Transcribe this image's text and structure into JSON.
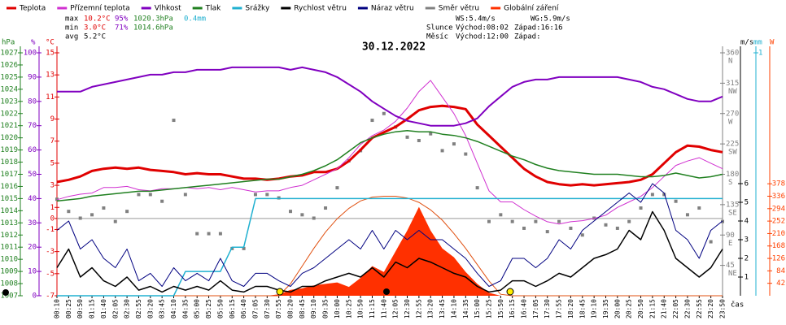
{
  "stats": {
    "max": {
      "label": "max",
      "temp": "10.2°C",
      "humidity": "95%",
      "pressure": "1020.3hPa",
      "rain": "0.4mm"
    },
    "min": {
      "label": "min",
      "temp": "3.0°C",
      "humidity": "71%",
      "pressure": "1014.6hPa"
    },
    "avg": {
      "label": "avg",
      "temp": "5.2°C"
    },
    "ws": "WS:5.4m/s",
    "wg": "WG:5.9m/s",
    "sun": {
      "label": "Slunce",
      "rise": "Východ:08:02",
      "set": "Západ:16:16"
    },
    "moon": {
      "label": "Měsíc",
      "rise": "Východ:12:00",
      "set": "Západ:"
    }
  },
  "chart_data": {
    "type": "line",
    "title": "30.12.2022",
    "x_label": "čas",
    "zero_line": true,
    "categories": [
      "00:10",
      "00:25",
      "00:50",
      "01:15",
      "01:40",
      "02:05",
      "02:30",
      "02:55",
      "03:20",
      "03:45",
      "04:10",
      "04:35",
      "05:00",
      "05:25",
      "05:50",
      "06:15",
      "06:40",
      "07:05",
      "07:30",
      "07:55",
      "08:20",
      "08:45",
      "09:10",
      "09:35",
      "10:00",
      "10:25",
      "10:50",
      "11:15",
      "11:40",
      "12:05",
      "12:30",
      "12:55",
      "13:20",
      "13:45",
      "14:10",
      "14:35",
      "15:00",
      "15:25",
      "15:50",
      "16:15",
      "16:40",
      "17:05",
      "17:30",
      "17:55",
      "18:20",
      "18:45",
      "19:10",
      "19:35",
      "20:00",
      "20:25",
      "20:50",
      "21:15",
      "21:40",
      "22:05",
      "22:30",
      "22:55",
      "23:20",
      "23:50"
    ],
    "axes": {
      "pressure": {
        "label": "hPa",
        "color": "#208020",
        "ylim": [
          1007,
          1027
        ],
        "yticks": [
          1027,
          1026,
          1025,
          1024,
          1023,
          1022,
          1021,
          1020,
          1019,
          1018,
          1017,
          1016,
          1015,
          1014,
          1013,
          1012,
          1011,
          1010,
          1009,
          1008,
          1007
        ]
      },
      "humidity": {
        "label": "%",
        "color": "#8000c0",
        "ylim": [
          0,
          100
        ],
        "yticks": [
          100,
          90,
          80,
          70,
          60,
          50,
          40,
          30,
          20,
          10,
          0
        ]
      },
      "temp": {
        "label": "°C",
        "color": "#e00000",
        "ylim": [
          -7,
          15
        ],
        "yticks": [
          15,
          13,
          11,
          9,
          7,
          5,
          3,
          1,
          0,
          -1,
          -3,
          -5,
          -7
        ]
      },
      "direction": {
        "color": "#808080",
        "ylim": [
          0,
          360
        ],
        "yticks": [
          360,
          315,
          270,
          225,
          180,
          135,
          90,
          45
        ],
        "compass": [
          "N",
          "NW",
          "W",
          "SW",
          "S",
          "SE",
          "E",
          "NE"
        ]
      },
      "wind": {
        "label": "m/s",
        "color": "#000000",
        "ylim": [
          0,
          13
        ],
        "yticks": [
          6,
          5,
          4,
          3,
          2,
          1
        ]
      },
      "rain": {
        "label": "mm",
        "color": "#20b0d0",
        "ylim": [
          0,
          1
        ],
        "yticks": [
          1
        ]
      },
      "radiation": {
        "label": "W",
        "color": "#ff4000",
        "ylim": [
          0,
          820
        ],
        "yticks": [
          378,
          336,
          294,
          252,
          210,
          168,
          126,
          84,
          42
        ]
      }
    },
    "series": [
      {
        "name": "Teplota",
        "color": "#e00000",
        "kind": "line",
        "axis": "temp",
        "width": 3,
        "values": [
          3.3,
          3.5,
          3.8,
          4.3,
          4.5,
          4.6,
          4.5,
          4.6,
          4.4,
          4.3,
          4.2,
          4.0,
          4.1,
          4.0,
          4.0,
          3.8,
          3.6,
          3.6,
          3.5,
          3.6,
          3.8,
          3.9,
          4.2,
          4.2,
          4.5,
          5.2,
          6.2,
          7.3,
          7.8,
          8.3,
          9.0,
          9.8,
          10.1,
          10.2,
          10.1,
          9.9,
          8.5,
          7.5,
          6.5,
          5.5,
          4.5,
          3.8,
          3.3,
          3.1,
          3.0,
          3.1,
          3.0,
          3.1,
          3.2,
          3.3,
          3.5,
          4.0,
          5.0,
          6.0,
          6.6,
          6.5,
          6.2,
          6.0
        ]
      },
      {
        "name": "Přízemní teplota",
        "color": "#d030d0",
        "kind": "line",
        "axis": "temp",
        "width": 1,
        "values": [
          1.7,
          2.0,
          2.2,
          2.3,
          2.8,
          2.8,
          2.9,
          2.6,
          2.5,
          2.7,
          2.7,
          2.8,
          2.7,
          2.8,
          2.6,
          2.8,
          2.6,
          2.4,
          2.5,
          2.5,
          2.8,
          3.0,
          3.5,
          4.0,
          4.5,
          5.5,
          6.7,
          7.5,
          8.0,
          8.8,
          10.0,
          11.5,
          12.5,
          11.0,
          9.5,
          7.5,
          5.0,
          2.5,
          1.5,
          1.5,
          0.8,
          0.2,
          -0.3,
          -0.5,
          -0.3,
          -0.2,
          0.0,
          0.3,
          1.0,
          1.5,
          2.0,
          2.8,
          3.8,
          4.8,
          5.2,
          5.5,
          5.0,
          4.5
        ]
      },
      {
        "name": "Vlhkost",
        "color": "#8000c0",
        "kind": "line",
        "axis": "humidity",
        "width": 2,
        "values": [
          84,
          84,
          84,
          86,
          87,
          88,
          89,
          90,
          91,
          91,
          92,
          92,
          93,
          93,
          93,
          94,
          94,
          94,
          94,
          94,
          93,
          94,
          93,
          92,
          90,
          87,
          84,
          80,
          77,
          74,
          72,
          71,
          70,
          70,
          70,
          71,
          73,
          78,
          82,
          86,
          88,
          89,
          89,
          90,
          90,
          90,
          90,
          90,
          90,
          89,
          88,
          86,
          85,
          83,
          81,
          80,
          80,
          82
        ]
      },
      {
        "name": "Tlak",
        "color": "#208020",
        "kind": "line",
        "axis": "pressure",
        "width": 1.5,
        "values": [
          1014.8,
          1014.9,
          1015.0,
          1015.2,
          1015.3,
          1015.4,
          1015.5,
          1015.6,
          1015.6,
          1015.7,
          1015.8,
          1015.9,
          1016.0,
          1016.1,
          1016.2,
          1016.3,
          1016.4,
          1016.5,
          1016.6,
          1016.6,
          1016.8,
          1017.0,
          1017.3,
          1017.7,
          1018.2,
          1018.9,
          1019.6,
          1020.0,
          1020.3,
          1020.5,
          1020.6,
          1020.5,
          1020.5,
          1020.3,
          1020.2,
          1020.0,
          1019.7,
          1019.3,
          1018.9,
          1018.5,
          1018.2,
          1017.8,
          1017.5,
          1017.3,
          1017.2,
          1017.1,
          1017.0,
          1017.0,
          1017.0,
          1016.9,
          1016.8,
          1016.8,
          1016.9,
          1017.1,
          1016.9,
          1016.7,
          1016.8,
          1017.0
        ]
      },
      {
        "name": "Srážky",
        "color": "#20b0d0",
        "kind": "line",
        "axis": "rain",
        "width": 1.5,
        "values": [
          0,
          0,
          0,
          0,
          0,
          0,
          0,
          0,
          0,
          0,
          0,
          0.1,
          0.1,
          0.1,
          0.1,
          0.2,
          0.2,
          0.4,
          0.4,
          0.4,
          0.4,
          0.4,
          0.4,
          0.4,
          0.4,
          0.4,
          0.4,
          0.4,
          0.4,
          0.4,
          0.4,
          0.4,
          0.4,
          0.4,
          0.4,
          0.4,
          0.4,
          0.4,
          0.4,
          0.4,
          0.4,
          0.4,
          0.4,
          0.4,
          0.4,
          0.4,
          0.4,
          0.4,
          0.4,
          0.4,
          0.4,
          0.4,
          0.4,
          0.4,
          0.4,
          0.4,
          0.4,
          0.4
        ]
      },
      {
        "name": "Rychlost větru",
        "color": "#000000",
        "kind": "line",
        "axis": "wind",
        "width": 1.5,
        "values": [
          1.5,
          2.5,
          1.0,
          1.5,
          0.8,
          0.5,
          1.0,
          0.3,
          0.5,
          0.2,
          0.5,
          0.3,
          0.5,
          0.3,
          0.8,
          0.3,
          0.2,
          0.5,
          0.5,
          0.3,
          0.2,
          0.5,
          0.5,
          0.8,
          1.0,
          1.2,
          1.0,
          1.5,
          1.0,
          1.8,
          1.5,
          2.0,
          1.8,
          1.5,
          1.2,
          1.0,
          0.5,
          0.2,
          0.3,
          0.8,
          0.8,
          0.5,
          0.8,
          1.2,
          1.0,
          1.5,
          2.0,
          2.2,
          2.5,
          3.5,
          3.0,
          4.5,
          3.5,
          2.0,
          1.5,
          1.0,
          1.5,
          2.5
        ]
      },
      {
        "name": "Náraz větru",
        "color": "#000080",
        "kind": "line",
        "axis": "wind",
        "width": 1,
        "values": [
          3.5,
          4.0,
          2.5,
          3.0,
          2.0,
          1.5,
          2.5,
          0.8,
          1.2,
          0.5,
          1.5,
          0.8,
          1.2,
          0.8,
          2.0,
          0.8,
          0.5,
          1.2,
          1.2,
          0.8,
          0.5,
          1.2,
          1.5,
          2.0,
          2.5,
          3.0,
          2.5,
          3.5,
          2.5,
          3.5,
          3.0,
          3.5,
          3.0,
          3.0,
          2.5,
          2.0,
          1.2,
          0.5,
          0.8,
          2.0,
          2.0,
          1.5,
          2.0,
          3.0,
          2.5,
          3.5,
          4.0,
          4.5,
          5.0,
          5.5,
          5.0,
          6.0,
          5.5,
          3.5,
          3.0,
          2.0,
          3.5,
          4.0
        ]
      },
      {
        "name": "Směr větru",
        "color": "#808080",
        "kind": "points",
        "axis": "direction",
        "values": [
          143,
          125,
          115,
          120,
          130,
          110,
          125,
          150,
          150,
          140,
          260,
          150,
          92,
          92,
          92,
          70,
          70,
          150,
          150,
          145,
          125,
          120,
          115,
          130,
          160,
          200,
          215,
          260,
          270,
          250,
          235,
          230,
          240,
          215,
          225,
          210,
          160,
          110,
          120,
          110,
          100,
          110,
          95,
          110,
          100,
          90,
          115,
          105,
          100,
          110,
          130,
          150,
          150,
          140,
          120,
          130,
          80,
          110
        ]
      },
      {
        "name": "Globální záření",
        "color": "#ff3000",
        "kind": "area",
        "axis": "radiation",
        "values": [
          0,
          0,
          0,
          0,
          0,
          0,
          0,
          0,
          0,
          0,
          0,
          0,
          0,
          0,
          0,
          0,
          0,
          0,
          0,
          5,
          20,
          25,
          35,
          40,
          45,
          30,
          60,
          100,
          80,
          150,
          220,
          300,
          220,
          160,
          130,
          80,
          40,
          10,
          0,
          0,
          0,
          0,
          0,
          0,
          0,
          0,
          0,
          0,
          0,
          0,
          0,
          0,
          0,
          0,
          0,
          0,
          0,
          0
        ],
        "max_values": [
          0,
          0,
          0,
          0,
          0,
          0,
          0,
          0,
          0,
          0,
          0,
          0,
          0,
          0,
          0,
          0,
          0,
          0,
          0,
          0,
          40,
          100,
          160,
          215,
          260,
          295,
          320,
          333,
          336,
          336,
          330,
          315,
          290,
          255,
          210,
          160,
          105,
          50,
          5,
          0,
          0,
          0,
          0,
          0,
          0,
          0,
          0,
          0,
          0,
          0,
          0,
          0,
          0,
          0,
          0,
          0,
          0,
          0
        ]
      }
    ]
  }
}
